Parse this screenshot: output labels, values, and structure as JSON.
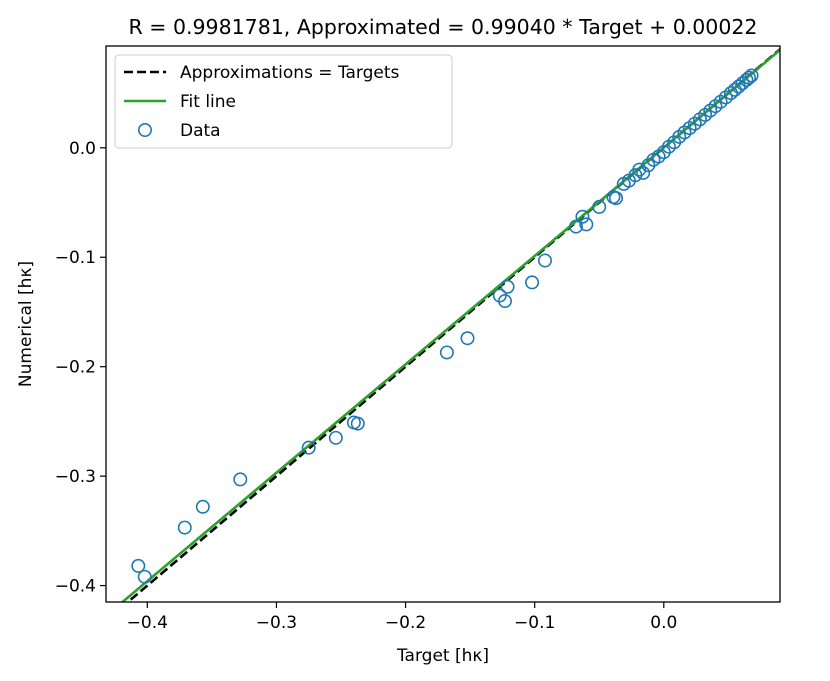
{
  "chart_data": {
    "type": "scatter",
    "title": "R = 0.9981781, Approximated = 0.99040 * Target + 0.00022",
    "xlabel": "Target [hκ]",
    "ylabel": "Numerical [hκ]",
    "xlim": [
      -0.432,
      0.09
    ],
    "ylim": [
      -0.415,
      0.093
    ],
    "xticks": [
      -0.4,
      -0.3,
      -0.2,
      -0.1,
      0.0
    ],
    "xtick_labels": [
      "−0.4",
      "−0.3",
      "−0.2",
      "−0.1",
      "0.0"
    ],
    "yticks": [
      -0.4,
      -0.3,
      -0.2,
      -0.1,
      0.0
    ],
    "ytick_labels": [
      "−0.4",
      "−0.3",
      "−0.2",
      "−0.1",
      "0.0"
    ],
    "grid": false,
    "legend_position": "top-left",
    "legend": [
      {
        "label": "Approximations = Targets",
        "style": "dashed-line",
        "color": "#000000"
      },
      {
        "label": "Fit line",
        "style": "solid-line",
        "color": "#2ca02c"
      },
      {
        "label": "Data",
        "style": "open-circle",
        "color": "#1f77b4"
      }
    ],
    "lines": [
      {
        "name": "Approximations = Targets",
        "slope": 1.0,
        "intercept": 0.0,
        "color": "#000000",
        "dash": true
      },
      {
        "name": "Fit line",
        "slope": 0.9904,
        "intercept": 0.00022,
        "color": "#2ca02c",
        "dash": false
      }
    ],
    "series": [
      {
        "name": "Data",
        "color": "#1f77b4",
        "points": [
          [
            -0.407,
            -0.382
          ],
          [
            -0.402,
            -0.392
          ],
          [
            -0.371,
            -0.347
          ],
          [
            -0.357,
            -0.328
          ],
          [
            -0.328,
            -0.303
          ],
          [
            -0.275,
            -0.274
          ],
          [
            -0.254,
            -0.265
          ],
          [
            -0.24,
            -0.251
          ],
          [
            -0.237,
            -0.252
          ],
          [
            -0.168,
            -0.187
          ],
          [
            -0.152,
            -0.174
          ],
          [
            -0.127,
            -0.135
          ],
          [
            -0.123,
            -0.14
          ],
          [
            -0.121,
            -0.127
          ],
          [
            -0.102,
            -0.123
          ],
          [
            -0.092,
            -0.103
          ],
          [
            -0.068,
            -0.072
          ],
          [
            -0.063,
            -0.063
          ],
          [
            -0.06,
            -0.07
          ],
          [
            -0.05,
            -0.054
          ],
          [
            -0.039,
            -0.045
          ],
          [
            -0.037,
            -0.046
          ],
          [
            -0.031,
            -0.033
          ],
          [
            -0.027,
            -0.03
          ],
          [
            -0.022,
            -0.025
          ],
          [
            -0.019,
            -0.02
          ],
          [
            -0.016,
            -0.023
          ],
          [
            -0.012,
            -0.016
          ],
          [
            -0.008,
            -0.011
          ],
          [
            -0.004,
            -0.008
          ],
          [
            0.0,
            -0.004
          ],
          [
            0.004,
            0.001
          ],
          [
            0.008,
            0.005
          ],
          [
            0.012,
            0.01
          ],
          [
            0.016,
            0.014
          ],
          [
            0.02,
            0.018
          ],
          [
            0.024,
            0.022
          ],
          [
            0.028,
            0.026
          ],
          [
            0.032,
            0.03
          ],
          [
            0.036,
            0.034
          ],
          [
            0.04,
            0.038
          ],
          [
            0.044,
            0.042
          ],
          [
            0.048,
            0.046
          ],
          [
            0.052,
            0.05
          ],
          [
            0.055,
            0.053
          ],
          [
            0.058,
            0.056
          ],
          [
            0.061,
            0.059
          ],
          [
            0.064,
            0.062
          ],
          [
            0.066,
            0.064
          ],
          [
            0.068,
            0.066
          ]
        ]
      }
    ]
  }
}
